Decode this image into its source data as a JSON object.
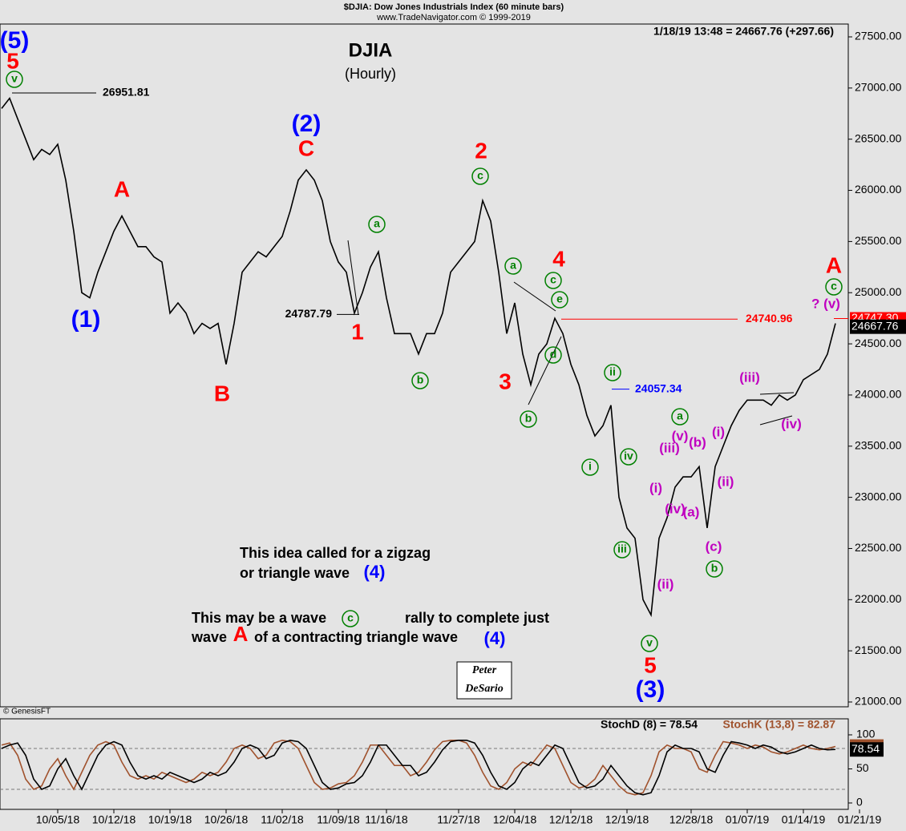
{
  "chart_data": {
    "type": "line",
    "header": "$DJIA:  Dow Jones Industrials Index  (60 minute bars)",
    "source": "www.TradeNavigator.com © 1999-2019",
    "readout": "1/18/19 13:48 = 24667.76 (+297.66)",
    "title": "DJIA",
    "subtitle": "(Hourly)",
    "copyright": "© GenesisFT",
    "signature": [
      "Peter",
      "DeSario"
    ],
    "categories": [
      null,
      null,
      null,
      null,
      null,
      null,
      null,
      "10/05/18",
      null,
      null,
      null,
      null,
      null,
      null,
      "10/12/18",
      null,
      null,
      null,
      null,
      null,
      null,
      "10/19/18",
      null,
      null,
      null,
      null,
      null,
      null,
      "10/26/18",
      null,
      null,
      null,
      null,
      null,
      null,
      "11/02/18",
      null,
      null,
      null,
      null,
      null,
      null,
      "11/09/18",
      null,
      null,
      null,
      null,
      null,
      "11/16/18",
      null,
      null,
      null,
      null,
      null,
      null,
      null,
      null,
      "11/27/18",
      null,
      null,
      null,
      null,
      null,
      null,
      "12/04/18",
      null,
      null,
      null,
      null,
      null,
      null,
      "12/12/18",
      null,
      null,
      null,
      null,
      null,
      null,
      "12/19/18",
      null,
      null,
      null,
      null,
      null,
      null,
      null,
      "12/28/18",
      null,
      null,
      null,
      null,
      null,
      null,
      "01/07/19",
      null,
      null,
      null,
      null,
      null,
      null,
      "01/14/19",
      null,
      null,
      null,
      null,
      null,
      null,
      "01/21/19"
    ],
    "series": [
      {
        "color": "#000000",
        "values": [
          26800,
          26900,
          26700,
          26500,
          26300,
          26400,
          26350,
          26450,
          26100,
          25600,
          25000,
          24950,
          25200,
          25400,
          25600,
          25750,
          25600,
          25450,
          25450,
          25350,
          25300,
          24800,
          24900,
          24800,
          24600,
          24700,
          24650,
          24700,
          24300,
          24700,
          25200,
          25300,
          25400,
          25350,
          25450,
          25550,
          25800,
          26100,
          26200,
          26100,
          25900,
          25500,
          25300,
          25200,
          24800,
          25000,
          25250,
          25400,
          24950,
          24600,
          24600,
          24600,
          24400,
          24600,
          24600,
          24800,
          25200,
          25300,
          25400,
          25500,
          25900,
          25700,
          25200,
          24600,
          24900,
          24400,
          24100,
          24400,
          24500,
          24750,
          24600,
          24300,
          24100,
          23800,
          23600,
          23700,
          23900,
          23000,
          22700,
          22600,
          22000,
          21850,
          22600,
          22800,
          23100,
          23200,
          23200,
          23300,
          22700,
          23300,
          23500,
          23700,
          23850,
          23950,
          23950,
          23950,
          23900,
          24000,
          23950,
          24000,
          24150,
          24200,
          24250,
          24400,
          24700,
          null,
          null,
          null
        ]
      }
    ],
    "ylim": [
      21000,
      27500
    ],
    "yticks": [
      {
        "value": 21000,
        "label": "21000.00"
      },
      {
        "value": 21500,
        "label": "21500.00"
      },
      {
        "value": 22000,
        "label": "22000.00"
      },
      {
        "value": 22500,
        "label": "22500.00"
      },
      {
        "value": 23000,
        "label": "23000.00"
      },
      {
        "value": 23500,
        "label": "23500.00"
      },
      {
        "value": 24000,
        "label": "24000.00"
      },
      {
        "value": 24500,
        "label": "24500.00"
      },
      {
        "value": 25000,
        "label": "25000.00"
      },
      {
        "value": 25500,
        "label": "25500.00"
      },
      {
        "value": 26000,
        "label": "26000.00"
      },
      {
        "value": 26500,
        "label": "26500.00"
      },
      {
        "value": 27000,
        "label": "27000.00"
      },
      {
        "value": 27500,
        "label": "27500.00"
      }
    ],
    "levels": [
      {
        "value": 26951.81,
        "color": "#000000"
      },
      {
        "value": 24787.79,
        "color": "#000000"
      },
      {
        "value": 24740.96,
        "color": "#ff0000"
      },
      {
        "value": 24057.34,
        "color": "#0000ff"
      }
    ],
    "last_price": 24667.76,
    "high_marker": {
      "value": 24747.3,
      "label": "24747.30"
    },
    "annotations": [
      {
        "text": "(5)",
        "color": "#0000ff"
      },
      {
        "text": "5",
        "color": "#ff0000"
      },
      {
        "text": "v",
        "color": "#008000"
      },
      {
        "text": "(1)",
        "color": "#0000ff"
      },
      {
        "text": "A",
        "color": "#ff0000"
      },
      {
        "text": "B",
        "color": "#ff0000"
      },
      {
        "text": "(2)",
        "color": "#0000ff"
      },
      {
        "text": "C",
        "color": "#ff0000"
      },
      {
        "text": "a",
        "color": "#008000"
      },
      {
        "text": "1",
        "color": "#ff0000"
      },
      {
        "text": "b",
        "color": "#008000"
      },
      {
        "text": "2",
        "color": "#ff0000"
      },
      {
        "text": "c",
        "color": "#008000"
      },
      {
        "text": "a",
        "color": "#008000"
      },
      {
        "text": "3",
        "color": "#ff0000"
      },
      {
        "text": "b",
        "color": "#008000"
      },
      {
        "text": "4",
        "color": "#ff0000"
      },
      {
        "text": "c",
        "color": "#008000"
      },
      {
        "text": "e",
        "color": "#008000"
      },
      {
        "text": "d",
        "color": "#008000"
      },
      {
        "text": "ii",
        "color": "#008000"
      },
      {
        "text": "i",
        "color": "#008000"
      },
      {
        "text": "iv",
        "color": "#008000"
      },
      {
        "text": "iii",
        "color": "#008000"
      },
      {
        "text": "v",
        "color": "#008000"
      },
      {
        "text": "5",
        "color": "#ff0000"
      },
      {
        "text": "(3)",
        "color": "#0000ff"
      },
      {
        "text": "a",
        "color": "#008000"
      },
      {
        "text": "(v)",
        "color": "#c000c0"
      },
      {
        "text": "(b)",
        "color": "#c000c0"
      },
      {
        "text": "(iii)",
        "color": "#c000c0"
      },
      {
        "text": "(i)",
        "color": "#c000c0"
      },
      {
        "text": "(iv)",
        "color": "#c000c0"
      },
      {
        "text": "(a)",
        "color": "#c000c0"
      },
      {
        "text": "(ii)",
        "color": "#c000c0"
      },
      {
        "text": "(i)",
        "color": "#c000c0"
      },
      {
        "text": "(ii)",
        "color": "#c000c0"
      },
      {
        "text": "(c)",
        "color": "#c000c0"
      },
      {
        "text": "b",
        "color": "#008000"
      },
      {
        "text": "(iii)",
        "color": "#c000c0"
      },
      {
        "text": "(iv)",
        "color": "#c000c0"
      },
      {
        "text": "? (v)",
        "color": "#c000c0"
      },
      {
        "text": "A",
        "color": "#ff0000"
      },
      {
        "text": "c",
        "color": "#008000"
      },
      {
        "text": "This idea called for a zigzag",
        "color": "#000000"
      },
      {
        "text": "or triangle wave",
        "color": "#000000"
      },
      {
        "text": "(4)",
        "color": "#0000ff"
      },
      {
        "text": "This may be a wave",
        "color": "#000000"
      },
      {
        "text": "c",
        "color": "#008000"
      },
      {
        "text": "rally  to complete just",
        "color": "#000000"
      },
      {
        "text": "wave",
        "color": "#000000"
      },
      {
        "text": "A",
        "color": "#ff0000"
      },
      {
        "text": "of a contracting triangle wave",
        "color": "#000000"
      },
      {
        "text": "(4)",
        "color": "#0000ff"
      }
    ],
    "stoch": {
      "ylim": [
        0,
        100
      ],
      "yticks": [
        0,
        50,
        100
      ],
      "reference_lines": [
        20,
        80
      ],
      "series": [
        {
          "label": "StochD (8) = 78.54",
          "color": "#000000",
          "last_value": 78.54,
          "values": [
            80,
            85,
            88,
            70,
            35,
            20,
            25,
            50,
            65,
            40,
            20,
            45,
            70,
            85,
            90,
            85,
            60,
            40,
            35,
            40,
            35,
            45,
            40,
            35,
            30,
            35,
            45,
            40,
            45,
            60,
            80,
            85,
            80,
            65,
            70,
            88,
            92,
            90,
            80,
            55,
            30,
            20,
            22,
            28,
            30,
            40,
            60,
            85,
            85,
            70,
            55,
            55,
            40,
            45,
            60,
            78,
            90,
            92,
            92,
            88,
            70,
            45,
            25,
            20,
            30,
            50,
            60,
            55,
            70,
            85,
            80,
            55,
            30,
            22,
            25,
            35,
            55,
            40,
            25,
            15,
            12,
            15,
            40,
            75,
            85,
            80,
            80,
            75,
            50,
            45,
            70,
            90,
            88,
            85,
            80,
            85,
            82,
            75,
            72,
            75,
            80,
            85,
            80,
            78,
            78.54,
            null,
            null,
            null
          ]
        },
        {
          "label": "StochK (13,8) = 82.87",
          "color": "#a0522d",
          "last_value": 82.87,
          "values": [
            85,
            88,
            70,
            35,
            20,
            25,
            50,
            65,
            40,
            20,
            45,
            70,
            85,
            90,
            85,
            60,
            40,
            35,
            40,
            35,
            45,
            40,
            35,
            30,
            35,
            45,
            40,
            45,
            60,
            80,
            85,
            80,
            65,
            70,
            88,
            92,
            90,
            80,
            55,
            30,
            20,
            22,
            28,
            30,
            40,
            60,
            85,
            85,
            70,
            55,
            55,
            40,
            45,
            60,
            78,
            90,
            92,
            92,
            88,
            70,
            45,
            25,
            20,
            30,
            50,
            60,
            55,
            70,
            85,
            80,
            55,
            30,
            22,
            25,
            35,
            55,
            40,
            25,
            15,
            12,
            15,
            40,
            75,
            85,
            80,
            80,
            75,
            50,
            45,
            70,
            90,
            88,
            85,
            80,
            85,
            82,
            75,
            72,
            75,
            80,
            85,
            80,
            78,
            80,
            82.87,
            null,
            null,
            null
          ]
        }
      ]
    }
  }
}
